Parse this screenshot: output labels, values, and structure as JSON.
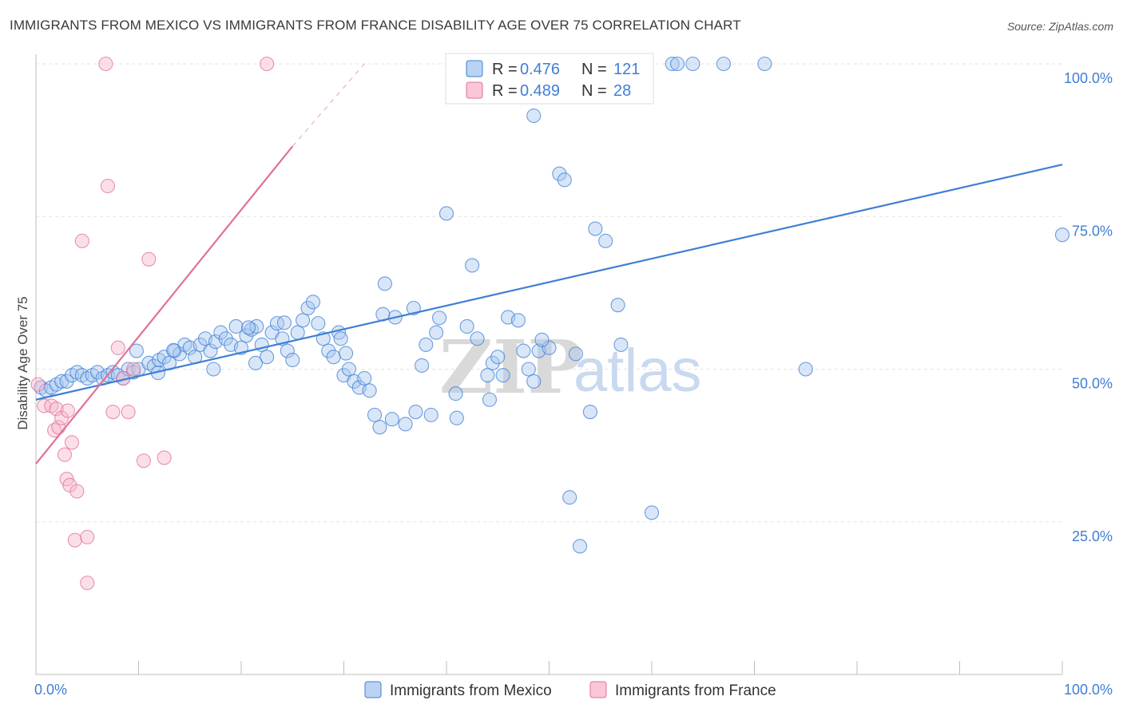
{
  "header": {
    "title": "IMMIGRANTS FROM MEXICO VS IMMIGRANTS FROM FRANCE DISABILITY AGE OVER 75 CORRELATION CHART",
    "source": "Source: ZipAtlas.com"
  },
  "watermark": {
    "zip": "ZIP",
    "atlas": "atlas"
  },
  "chart_data": {
    "type": "scatter",
    "title": "IMMIGRANTS FROM MEXICO VS IMMIGRANTS FROM FRANCE DISABILITY AGE OVER 75 CORRELATION CHART",
    "xlabel": "",
    "ylabel": "Disability Age Over 75",
    "xlim": [
      0,
      100
    ],
    "ylim": [
      0,
      100
    ],
    "x_tick_labels": {
      "left": "0.0%",
      "right": "100.0%"
    },
    "y_tick_labels": [
      {
        "value": 100,
        "label": "100.0%"
      },
      {
        "value": 75,
        "label": "75.0%"
      },
      {
        "value": 50,
        "label": "50.0%"
      },
      {
        "value": 25,
        "label": "25.0%"
      }
    ],
    "grid": true,
    "legend": {
      "position": "top-center",
      "rows": [
        {
          "r_label": "R =",
          "r_value": "0.476",
          "n_label": "N =",
          "n_value": "121"
        },
        {
          "r_label": "R =",
          "r_value": "0.489",
          "n_label": "N =",
          "n_value": "28"
        }
      ]
    },
    "series": [
      {
        "name": "Immigrants from Mexico",
        "color": "#3f7fd4",
        "fill": "#a9c8ef",
        "trendline": {
          "x": [
            0,
            100
          ],
          "y": [
            45,
            83.5
          ]
        },
        "points": [
          [
            0.5,
            47
          ],
          [
            1,
            46.5
          ],
          [
            1.5,
            47
          ],
          [
            2,
            47.5
          ],
          [
            2.5,
            48
          ],
          [
            3,
            48
          ],
          [
            3.5,
            49
          ],
          [
            4,
            49.5
          ],
          [
            4.5,
            49
          ],
          [
            5,
            48.5
          ],
          [
            5.5,
            49
          ],
          [
            6,
            49.5
          ],
          [
            6.5,
            48.5
          ],
          [
            7,
            49
          ],
          [
            7.5,
            49.5
          ],
          [
            8,
            49
          ],
          [
            8.5,
            48.5
          ],
          [
            9,
            50
          ],
          [
            9.5,
            49.5
          ],
          [
            10,
            50
          ],
          [
            11,
            51
          ],
          [
            11.5,
            50.5
          ],
          [
            12,
            51.5
          ],
          [
            12.5,
            52
          ],
          [
            13,
            51
          ],
          [
            13.5,
            53
          ],
          [
            14,
            52.5
          ],
          [
            14.5,
            54
          ],
          [
            15,
            53.5
          ],
          [
            15.5,
            52
          ],
          [
            16,
            54
          ],
          [
            16.5,
            55
          ],
          [
            17,
            53
          ],
          [
            17.5,
            54.5
          ],
          [
            18,
            56
          ],
          [
            18.5,
            55
          ],
          [
            19,
            54
          ],
          [
            19.5,
            57
          ],
          [
            20,
            53.5
          ],
          [
            20.5,
            55.5
          ],
          [
            21,
            56.5
          ],
          [
            21.5,
            57
          ],
          [
            22,
            54
          ],
          [
            22.5,
            52
          ],
          [
            23,
            56
          ],
          [
            23.5,
            57.5
          ],
          [
            24,
            55
          ],
          [
            24.5,
            53
          ],
          [
            25,
            51.5
          ],
          [
            25.5,
            56
          ],
          [
            26,
            58
          ],
          [
            26.5,
            60
          ],
          [
            27,
            61
          ],
          [
            27.5,
            57.5
          ],
          [
            28,
            55
          ],
          [
            28.5,
            53
          ],
          [
            29,
            52
          ],
          [
            29.5,
            56
          ],
          [
            30,
            49
          ],
          [
            30.5,
            50
          ],
          [
            31,
            48
          ],
          [
            31.5,
            47
          ],
          [
            32,
            48.5
          ],
          [
            32.5,
            46.5
          ],
          [
            33,
            42.5
          ],
          [
            33.5,
            40.5
          ],
          [
            34,
            64
          ],
          [
            35,
            58.5
          ],
          [
            36,
            41
          ],
          [
            37,
            43
          ],
          [
            38,
            54
          ],
          [
            39,
            56
          ],
          [
            40,
            75.5
          ],
          [
            41,
            42
          ],
          [
            42,
            57
          ],
          [
            42.5,
            67
          ],
          [
            44,
            49
          ],
          [
            44.5,
            51
          ],
          [
            45,
            52
          ],
          [
            45.5,
            49
          ],
          [
            46,
            58.5
          ],
          [
            47,
            58
          ],
          [
            47.5,
            53
          ],
          [
            48,
            50
          ],
          [
            48.5,
            91.5
          ],
          [
            49,
            53
          ],
          [
            50,
            53.5
          ],
          [
            51,
            82
          ],
          [
            51.5,
            81
          ],
          [
            52,
            29
          ],
          [
            53,
            21
          ],
          [
            54,
            43
          ],
          [
            54.5,
            73
          ],
          [
            55.5,
            71
          ],
          [
            57,
            54
          ],
          [
            60,
            26.5
          ],
          [
            62,
            100
          ],
          [
            62.5,
            100
          ],
          [
            64,
            100
          ],
          [
            67,
            100
          ],
          [
            71,
            100
          ],
          [
            75,
            50
          ],
          [
            100,
            72
          ],
          [
            38.5,
            42.5
          ],
          [
            43,
            55
          ],
          [
            48.5,
            48
          ],
          [
            9.8,
            53
          ],
          [
            20.7,
            56.8
          ],
          [
            24.2,
            57.6
          ],
          [
            29.7,
            55
          ],
          [
            33.8,
            59
          ],
          [
            36.8,
            60
          ],
          [
            44.2,
            45
          ],
          [
            49.3,
            54.8
          ],
          [
            52.6,
            52.5
          ],
          [
            56.7,
            60.5
          ],
          [
            34.7,
            41.8
          ],
          [
            30.2,
            52.6
          ],
          [
            21.4,
            51
          ],
          [
            17.3,
            50
          ],
          [
            13.4,
            53.1
          ],
          [
            11.9,
            49.4
          ],
          [
            37.6,
            50.6
          ],
          [
            39.3,
            58.4
          ],
          [
            40.9,
            46
          ]
        ]
      },
      {
        "name": "Immigrants from France",
        "color": "#e07099",
        "fill": "#f7b9cc",
        "trendline": {
          "x": [
            0,
            25
          ],
          "y": [
            34.5,
            86.5
          ],
          "dashed_to": {
            "x": 32,
            "y": 100
          }
        },
        "points": [
          [
            0.2,
            47.5
          ],
          [
            0.8,
            44
          ],
          [
            1.5,
            44
          ],
          [
            1.8,
            40
          ],
          [
            2,
            43.5
          ],
          [
            2.2,
            40.5
          ],
          [
            2.5,
            42
          ],
          [
            2.8,
            36
          ],
          [
            3,
            32
          ],
          [
            3.3,
            31
          ],
          [
            3.5,
            38
          ],
          [
            3.8,
            22
          ],
          [
            4,
            30
          ],
          [
            4.5,
            71
          ],
          [
            5,
            15
          ],
          [
            5,
            22.5
          ],
          [
            6.8,
            100
          ],
          [
            7,
            80
          ],
          [
            7.5,
            43
          ],
          [
            8,
            53.5
          ],
          [
            8.5,
            48.5
          ],
          [
            9,
            43
          ],
          [
            9.5,
            50
          ],
          [
            10.5,
            35
          ],
          [
            11,
            68
          ],
          [
            12.5,
            35.5
          ],
          [
            22.5,
            100
          ],
          [
            3.1,
            43.2
          ]
        ]
      }
    ]
  }
}
